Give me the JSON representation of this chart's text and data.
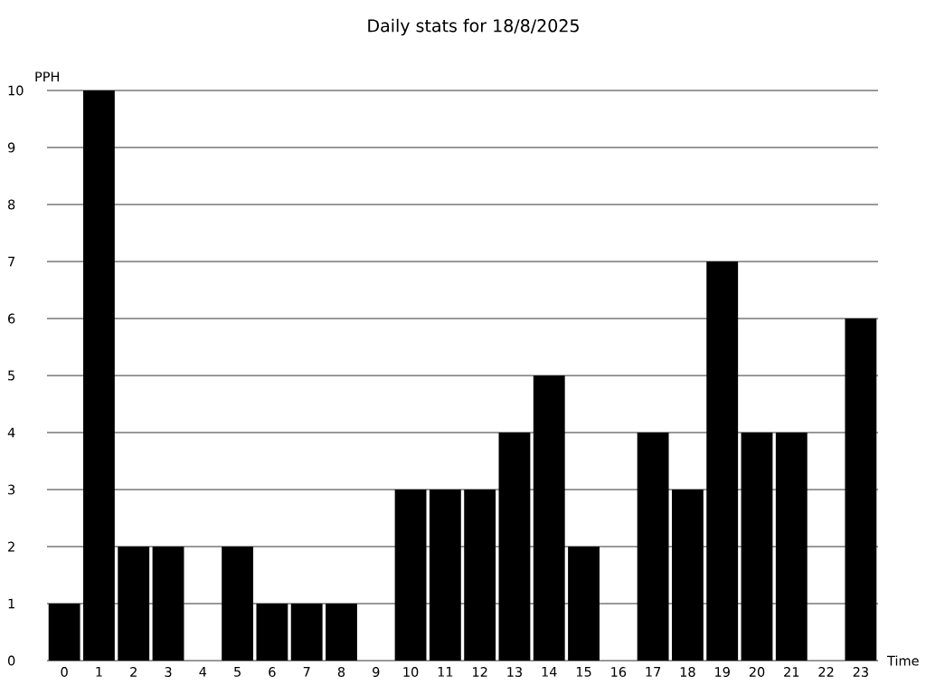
{
  "chart_data": {
    "type": "bar",
    "title": "Daily stats for 18/8/2025",
    "xlabel": "Time",
    "ylabel": "PPH",
    "categories": [
      "0",
      "1",
      "2",
      "3",
      "4",
      "5",
      "6",
      "7",
      "8",
      "9",
      "10",
      "11",
      "12",
      "13",
      "14",
      "15",
      "16",
      "17",
      "18",
      "19",
      "20",
      "21",
      "22",
      "23"
    ],
    "values": [
      1,
      10,
      2,
      2,
      0,
      2,
      1,
      1,
      1,
      0,
      3,
      3,
      3,
      4,
      5,
      2,
      0,
      4,
      3,
      7,
      4,
      4,
      0,
      6
    ],
    "color": "#000000",
    "ylim": [
      0,
      10
    ],
    "yticks": [
      0,
      1,
      2,
      3,
      4,
      5,
      6,
      7,
      8,
      9,
      10
    ],
    "grid": "y"
  }
}
